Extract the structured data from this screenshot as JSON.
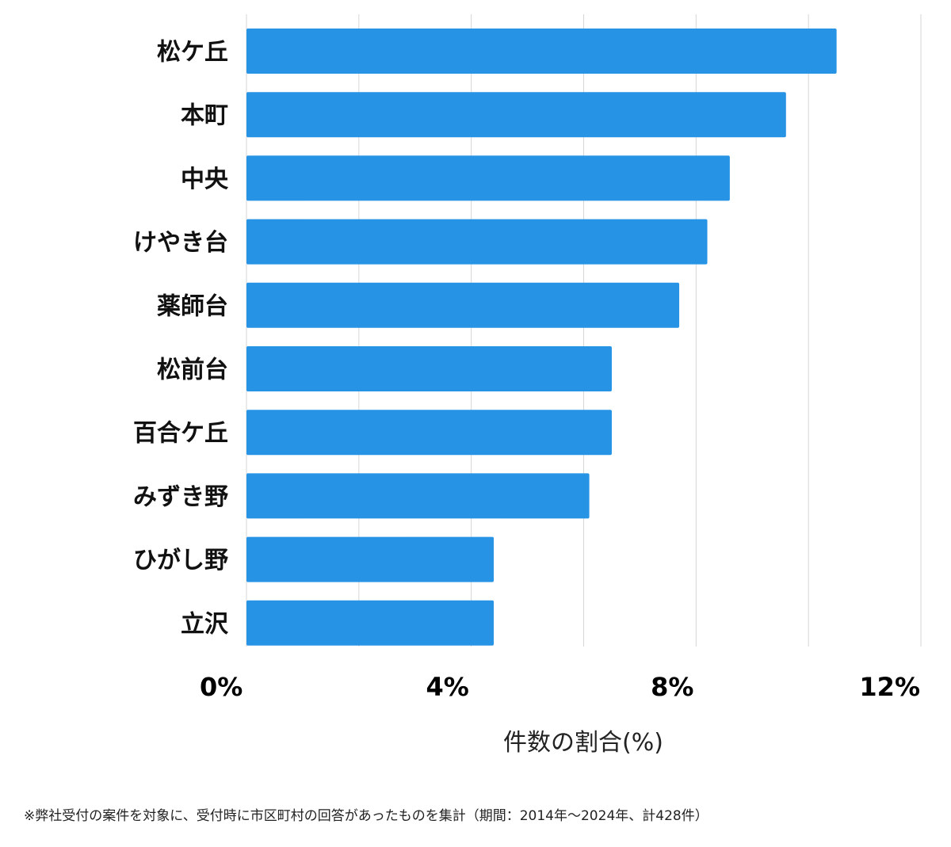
{
  "chart_data": {
    "type": "bar",
    "orientation": "horizontal",
    "categories": [
      "松ケ丘",
      "本町",
      "中央",
      "けやき台",
      "薬師台",
      "松前台",
      "百合ケ丘",
      "みずき野",
      "ひがし野",
      "立沢"
    ],
    "values": [
      10.5,
      9.6,
      8.6,
      8.2,
      7.7,
      6.5,
      6.5,
      6.1,
      4.4,
      4.4
    ],
    "xlabel": "件数の割合(%)",
    "xlim": [
      0,
      12
    ],
    "xticks": [
      0,
      4,
      8,
      12
    ],
    "xtick_labels": [
      "0%",
      "4%",
      "8%",
      "12%"
    ],
    "grid": true,
    "bar_color": "#2693e5"
  },
  "footnote": "※弊社受付の案件を対象に、受付時に市区町村の回答があったものを集計（期間：2014年～2024年、計428件）"
}
